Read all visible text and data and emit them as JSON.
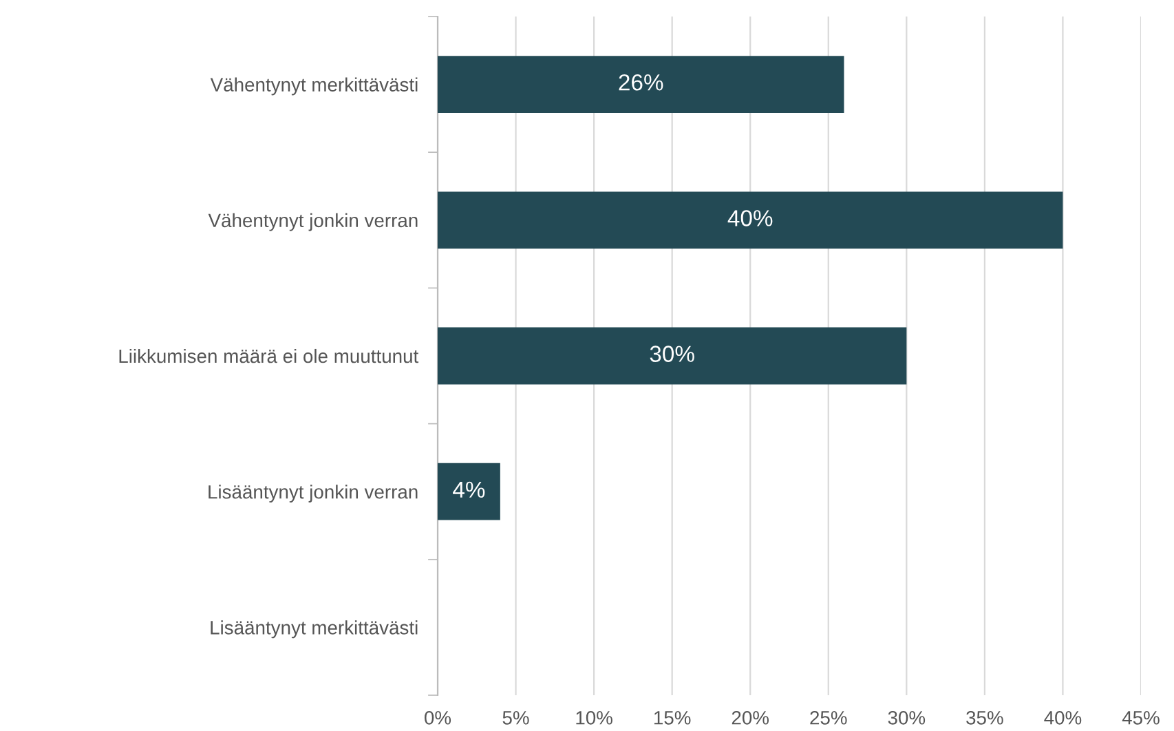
{
  "chart_data": {
    "type": "bar",
    "orientation": "horizontal",
    "categories": [
      "Vähentynyt merkittävästi",
      "Vähentynyt jonkin verran",
      "Liikkumisen määrä ei ole muuttunut",
      "Lisääntynyt jonkin verran",
      "Lisääntynyt merkittävästi"
    ],
    "values": [
      26,
      40,
      30,
      4,
      0
    ],
    "value_labels": [
      "26%",
      "40%",
      "30%",
      "4%",
      null
    ],
    "color": "#234a55",
    "xlim": [
      0,
      45
    ],
    "xticks": [
      {
        "value": 0,
        "label": "0%"
      },
      {
        "value": 5,
        "label": "5%"
      },
      {
        "value": 10,
        "label": "10%"
      },
      {
        "value": 15,
        "label": "15%"
      },
      {
        "value": 20,
        "label": "20%"
      },
      {
        "value": 25,
        "label": "25%"
      },
      {
        "value": 30,
        "label": "30%"
      },
      {
        "value": 35,
        "label": "35%"
      },
      {
        "value": 40,
        "label": "40%"
      },
      {
        "value": 45,
        "label": "45%"
      }
    ],
    "grid": "x",
    "legend": false
  }
}
